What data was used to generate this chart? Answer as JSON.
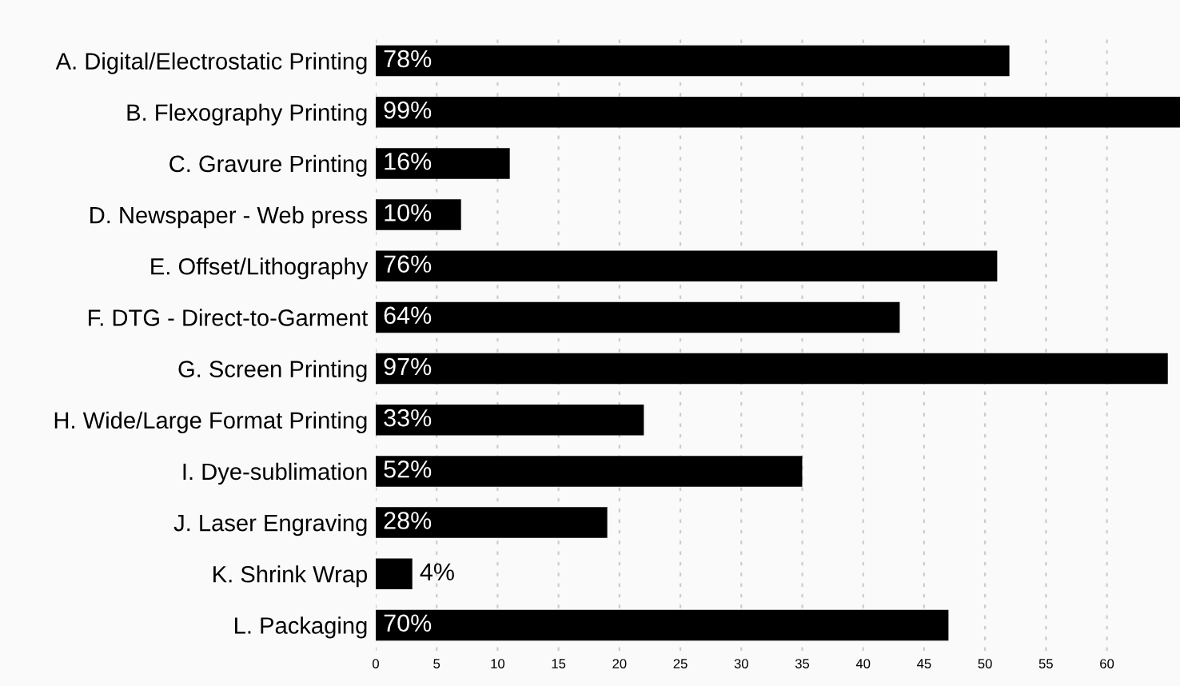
{
  "chart_data": {
    "type": "bar",
    "orientation": "horizontal",
    "categories": [
      "A. Digital/Electrostatic Printing",
      "B. Flexography Printing",
      "C. Gravure Printing",
      "D. Newspaper - Web press",
      "E. Offset/Lithography",
      "F. DTG - Direct-to-Garment",
      "G. Screen Printing",
      "H. Wide/Large Format Printing",
      "I. Dye-sublimation",
      "J. Laser Engraving",
      "K. Shrink Wrap",
      "L. Packaging"
    ],
    "values": [
      52,
      66,
      11,
      7,
      51,
      43,
      65,
      22,
      35,
      19,
      3,
      47
    ],
    "annotations": [
      "78%",
      "99%",
      "16%",
      "10%",
      "76%",
      "64%",
      "97%",
      "33%",
      "52%",
      "28%",
      "4%",
      "70%"
    ],
    "color": "#000000",
    "xlim": [
      0,
      66
    ],
    "xticks": [
      0,
      5,
      10,
      15,
      20,
      25,
      30,
      35,
      40,
      45,
      50,
      55,
      60
    ],
    "grid": "x"
  }
}
